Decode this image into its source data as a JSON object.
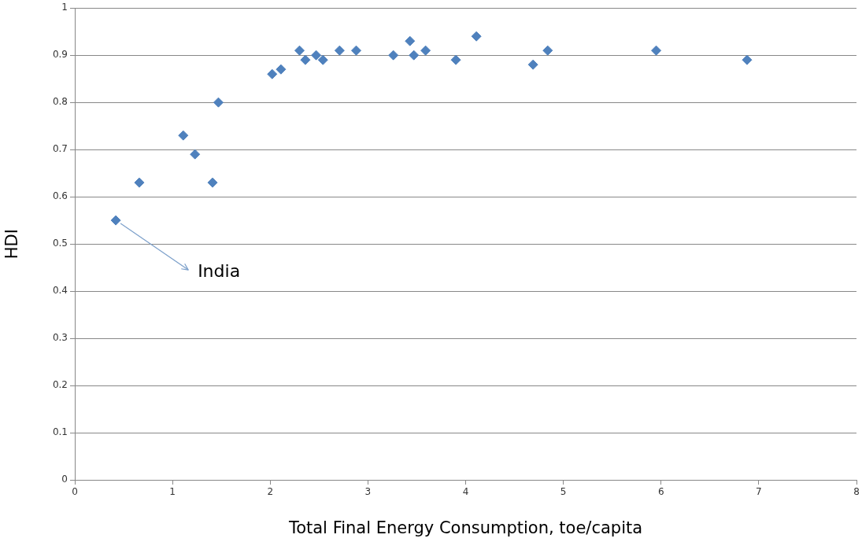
{
  "chart_data": {
    "type": "scatter",
    "xlabel": "Total Final Energy Consumption, toe/capita",
    "ylabel": "HDI",
    "x": [
      0.42,
      0.66,
      1.11,
      1.23,
      1.41,
      1.47,
      2.02,
      2.11,
      2.3,
      2.36,
      2.47,
      2.54,
      2.71,
      2.88,
      3.26,
      3.43,
      3.47,
      3.59,
      3.9,
      4.11,
      4.69,
      4.84,
      5.95,
      6.88
    ],
    "values": [
      0.55,
      0.63,
      0.73,
      0.69,
      0.63,
      0.8,
      0.86,
      0.87,
      0.91,
      0.89,
      0.9,
      0.89,
      0.91,
      0.91,
      0.9,
      0.93,
      0.9,
      0.91,
      0.89,
      0.94,
      0.88,
      0.91,
      0.91,
      0.89
    ],
    "color": "#4f81bd",
    "marker": "diamond",
    "grid": "y",
    "xlim": [
      0,
      8
    ],
    "xticks": [
      0,
      1,
      2,
      3,
      4,
      5,
      6,
      7,
      8
    ],
    "ylim": [
      0,
      1
    ],
    "yticks": [
      0,
      0.1,
      0.2,
      0.3,
      0.4,
      0.5,
      0.6,
      0.7,
      0.8,
      0.9,
      1
    ],
    "annotations": [
      {
        "text": "India",
        "x": 0.42,
        "y": 0.55
      }
    ]
  }
}
